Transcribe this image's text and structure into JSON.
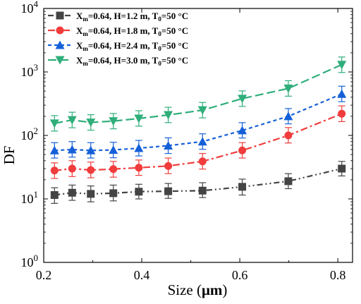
{
  "chart_data": {
    "type": "line",
    "title": "",
    "xlabel_prefix": "Size (",
    "xlabel_unit": "μm",
    "xlabel_suffix": ")",
    "ylabel": "DF",
    "xlim": [
      0.2,
      0.83
    ],
    "ylim": [
      1,
      10000
    ],
    "y_scale": "log",
    "grid": false,
    "legend_position": "top-left",
    "x_ticks": [
      {
        "value": 0.2,
        "label": "0.2"
      },
      {
        "value": 0.4,
        "label": "0.4"
      },
      {
        "value": 0.6,
        "label": "0.6"
      },
      {
        "value": 0.8,
        "label": "0.8"
      }
    ],
    "y_ticks": [
      {
        "value": 1,
        "base": "10",
        "exp": "0"
      },
      {
        "value": 10,
        "base": "10",
        "exp": "1"
      },
      {
        "value": 100,
        "base": "10",
        "exp": "2"
      },
      {
        "value": 1000,
        "base": "10",
        "exp": "3"
      },
      {
        "value": 10000,
        "base": "10",
        "exp": "4"
      }
    ],
    "x": [
      0.222,
      0.258,
      0.296,
      0.342,
      0.394,
      0.454,
      0.524,
      0.605,
      0.699,
      0.808
    ],
    "series": [
      {
        "legend": {
          "x": "X",
          "xsub": "m",
          "mid": "=0.64, H=1.2 m, T",
          "tsub": "0",
          "end": "=50 °C"
        },
        "color": "#444444",
        "marker": "square",
        "dash": "8,4,2,4,2,4",
        "values": [
          11.5,
          12.5,
          12.0,
          12.3,
          13.0,
          13.2,
          13.5,
          15.5,
          19.0,
          30.0
        ],
        "err_low": [
          8.5,
          9.5,
          9.0,
          9.3,
          10.0,
          10.2,
          10.5,
          11.5,
          14.5,
          23.0
        ],
        "err_high": [
          15.0,
          16.5,
          16.0,
          16.5,
          17.0,
          17.5,
          18.0,
          20.5,
          25.0,
          39.0
        ]
      },
      {
        "legend": {
          "x": "X",
          "xsub": "m",
          "mid": "=0.64, H=1.8 m, T",
          "tsub": "0",
          "end": "=50 °C"
        },
        "color": "#f03c3c",
        "marker": "circle",
        "dash": "10,4,3,4",
        "values": [
          28.0,
          30.0,
          28.5,
          29.5,
          31.0,
          33.0,
          39.0,
          58.0,
          100.0,
          220.0
        ],
        "err_low": [
          21.0,
          22.5,
          21.5,
          22.0,
          23.5,
          25.0,
          29.5,
          44.0,
          76.0,
          165.0
        ],
        "err_high": [
          37.0,
          40.0,
          38.0,
          39.0,
          41.0,
          44.0,
          52.0,
          77.0,
          133.0,
          292.0
        ]
      },
      {
        "legend": {
          "x": "X",
          "xsub": "m",
          "mid": "=0.64, H=2.4 m, T",
          "tsub": "0",
          "end": "=50 °C"
        },
        "color": "#1560d8",
        "marker": "triangle-up",
        "dash": "5,4",
        "values": [
          58.0,
          60.0,
          58.0,
          59.0,
          63.0,
          69.0,
          80.0,
          120.0,
          200.0,
          450.0
        ],
        "err_low": [
          44.0,
          45.5,
          44.0,
          44.5,
          47.5,
          52.0,
          60.5,
          91.0,
          152.0,
          340.0
        ],
        "err_high": [
          77.0,
          80.0,
          77.0,
          78.0,
          83.5,
          91.5,
          106.0,
          159.0,
          265.0,
          596.0
        ]
      },
      {
        "legend": {
          "x": "X",
          "xsub": "m",
          "mid": "=0.64, H=3.0 m, T",
          "tsub": "0",
          "end": "=50 °C"
        },
        "color": "#2fae7a",
        "marker": "triangle-down",
        "dash": "12,5",
        "values": [
          155.0,
          175.0,
          160.0,
          168.0,
          185.0,
          210.0,
          250.0,
          380.0,
          550.0,
          1300.0
        ],
        "err_low": [
          117.0,
          132.0,
          121.0,
          127.0,
          140.0,
          159.0,
          189.0,
          287.0,
          415.0,
          980.0
        ],
        "err_high": [
          205.0,
          232.0,
          212.0,
          222.0,
          245.0,
          278.0,
          331.0,
          503.0,
          728.0,
          1720.0
        ]
      }
    ]
  }
}
